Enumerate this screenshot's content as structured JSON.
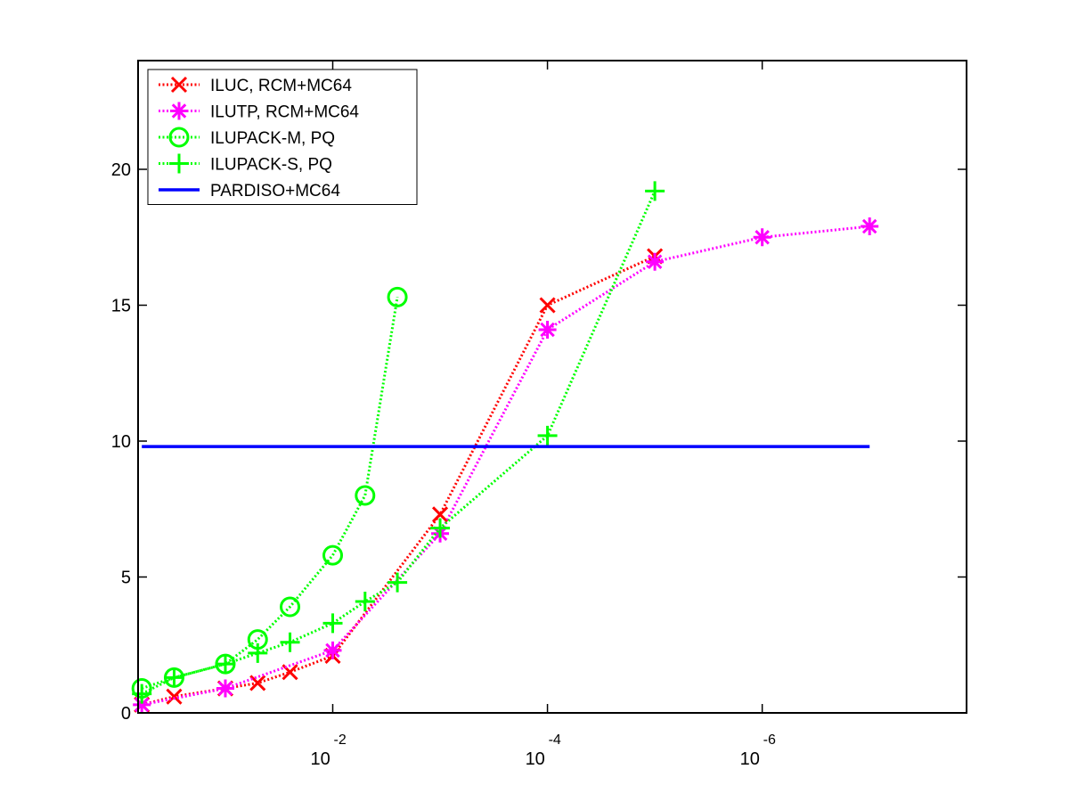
{
  "chart_data": {
    "type": "line",
    "title": "",
    "xlabel": "",
    "ylabel": "",
    "xscale": "log",
    "xaxis_reversed": true,
    "xlim": [
      0.65,
      1.25e-08
    ],
    "ylim": [
      0,
      24
    ],
    "grid": false,
    "legend_position": "top-left",
    "x_ticks": [
      {
        "value": 0.01,
        "base": "10",
        "exponent": "-2"
      },
      {
        "value": 0.0001,
        "base": "10",
        "exponent": "-4"
      },
      {
        "value": 1e-06,
        "base": "10",
        "exponent": "-6"
      }
    ],
    "y_ticks": [
      {
        "value": 0,
        "label": "0"
      },
      {
        "value": 5,
        "label": "5"
      },
      {
        "value": 10,
        "label": "10"
      },
      {
        "value": 15,
        "label": "15"
      },
      {
        "value": 20,
        "label": "20"
      }
    ],
    "series": [
      {
        "name": "ILUC, RCM+MC64",
        "color": "#ff0000",
        "marker": "x",
        "line_style": "dotted",
        "x": [
          0.6,
          0.3,
          0.1,
          0.05,
          0.025,
          0.01,
          0.001,
          0.0001,
          1e-05
        ],
        "y": [
          0.3,
          0.6,
          0.9,
          1.1,
          1.5,
          2.1,
          7.3,
          15.0,
          16.8
        ]
      },
      {
        "name": "ILUTP, RCM+MC64",
        "color": "#ff00ff",
        "marker": "asterisk",
        "line_style": "dotted",
        "x": [
          0.6,
          0.1,
          0.01,
          0.001,
          0.0001,
          1e-05,
          1e-06,
          1e-07
        ],
        "y": [
          0.3,
          0.9,
          2.3,
          6.6,
          14.1,
          16.6,
          17.5,
          17.9
        ]
      },
      {
        "name": "ILUPACK-M, PQ",
        "color": "#00ff00",
        "marker": "circle",
        "line_style": "dotted",
        "x": [
          0.6,
          0.3,
          0.1,
          0.05,
          0.025,
          0.01,
          0.005,
          0.0025
        ],
        "y": [
          0.9,
          1.3,
          1.8,
          2.7,
          3.9,
          5.8,
          8.0,
          15.3
        ]
      },
      {
        "name": "ILUPACK-S, PQ",
        "color": "#00ff00",
        "marker": "plus",
        "line_style": "dotted",
        "x": [
          0.6,
          0.3,
          0.1,
          0.05,
          0.025,
          0.01,
          0.005,
          0.0025,
          0.001,
          0.0001,
          1e-05
        ],
        "y": [
          0.7,
          1.3,
          1.8,
          2.2,
          2.6,
          3.3,
          4.1,
          4.8,
          6.8,
          10.2,
          19.2
        ]
      },
      {
        "name": "PARDISO+MC64",
        "color": "#0000ff",
        "marker": "none",
        "line_style": "solid",
        "x": [
          0.6,
          1e-07
        ],
        "y": [
          9.8,
          9.8
        ]
      }
    ]
  }
}
